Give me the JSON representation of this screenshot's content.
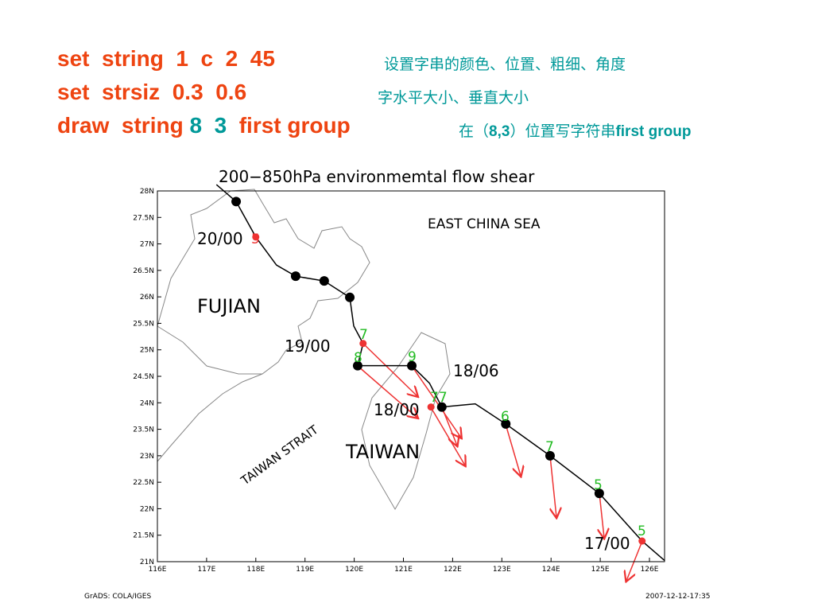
{
  "header": {
    "lines": [
      {
        "command": "set  string  1  c  2  45",
        "note": "设置字串的颜色、位置、粗细、角度"
      },
      {
        "command": "set  strsiz  0.3  0.6",
        "note": "字水平大小、垂直大小"
      },
      {
        "command_parts": [
          "draw  string ",
          "8  3",
          "  first group"
        ],
        "note_parts": [
          "在（",
          "8,3",
          "）位置写字符串",
          "first group"
        ]
      }
    ]
  },
  "map": {
    "title": "200−850hPa environmemtal flow shear",
    "xlim": [
      116,
      126
    ],
    "ylim": [
      21,
      28
    ],
    "xticks": [
      {
        "value": 116,
        "label": "116E"
      },
      {
        "value": 117,
        "label": "117E"
      },
      {
        "value": 118,
        "label": "118E"
      },
      {
        "value": 119,
        "label": "119E"
      },
      {
        "value": 120,
        "label": "120E"
      },
      {
        "value": 121,
        "label": "121E"
      },
      {
        "value": 122,
        "label": "122E"
      },
      {
        "value": 123,
        "label": "123E"
      },
      {
        "value": 124,
        "label": "124E"
      },
      {
        "value": 125,
        "label": "125E"
      },
      {
        "value": 126,
        "label": "126E"
      }
    ],
    "yticks": [
      {
        "value": 21,
        "label": "21N"
      },
      {
        "value": 21.5,
        "label": "21.5N"
      },
      {
        "value": 22,
        "label": "22N"
      },
      {
        "value": 22.5,
        "label": "22.5N"
      },
      {
        "value": 23,
        "label": "23N"
      },
      {
        "value": 23.5,
        "label": "23.5N"
      },
      {
        "value": 24,
        "label": "24N"
      },
      {
        "value": 24.5,
        "label": "24.5N"
      },
      {
        "value": 25,
        "label": "25N"
      },
      {
        "value": 25.5,
        "label": "25.5N"
      },
      {
        "value": 26,
        "label": "26N"
      },
      {
        "value": 26.5,
        "label": "26.5N"
      },
      {
        "value": 27,
        "label": "27N"
      },
      {
        "value": 27.5,
        "label": "27.5N"
      },
      {
        "value": 28,
        "label": "28N"
      }
    ],
    "track": {
      "lon": [
        117.2,
        117.6,
        118.0,
        118.42,
        118.81,
        119.39,
        119.91,
        119.99,
        120.18,
        120.07,
        121.17,
        121.53,
        121.78,
        122.46,
        123.08,
        123.98,
        124.98,
        125.56,
        125.85,
        126.31
      ],
      "lat": [
        28.12,
        27.8,
        27.13,
        26.6,
        26.39,
        26.3,
        25.99,
        25.45,
        25.12,
        24.7,
        24.7,
        24.37,
        23.92,
        23.98,
        23.6,
        23.0,
        22.29,
        21.69,
        21.39,
        21.02
      ]
    },
    "points": [
      {
        "lon": 117.6,
        "lat": 27.8,
        "color": "#000000"
      },
      {
        "lon": 118.81,
        "lat": 26.39,
        "color": "#000000"
      },
      {
        "lon": 119.39,
        "lat": 26.3,
        "color": "#000000"
      },
      {
        "lon": 119.91,
        "lat": 25.99,
        "color": "#000000"
      },
      {
        "lon": 120.07,
        "lat": 24.7,
        "color": "#000000"
      },
      {
        "lon": 121.17,
        "lat": 24.7,
        "color": "#000000"
      },
      {
        "lon": 121.78,
        "lat": 23.92,
        "color": "#000000"
      },
      {
        "lon": 123.08,
        "lat": 23.6,
        "color": "#000000"
      },
      {
        "lon": 123.98,
        "lat": 23.0,
        "color": "#000000"
      },
      {
        "lon": 124.98,
        "lat": 22.29,
        "color": "#000000"
      },
      {
        "lon": 118.0,
        "lat": 27.13,
        "color": "#ee3333"
      },
      {
        "lon": 120.18,
        "lat": 25.12,
        "color": "#ee3333"
      },
      {
        "lon": 121.56,
        "lat": 23.92,
        "color": "#ee3333"
      },
      {
        "lon": 125.85,
        "lat": 21.39,
        "color": "#ee3333"
      }
    ],
    "region_labels": [
      "EAST  CHINA  SEA",
      "FUJIAN",
      "TAIWAN",
      "TAIWAN  STRAIT"
    ],
    "time_labels": [
      "20/00",
      "19/00",
      "18/06",
      "18/00",
      "17/00"
    ],
    "number_labels": [
      "5",
      "7",
      "8",
      "9",
      "77",
      "6",
      "7",
      "5",
      "5"
    ],
    "footer_left": "GrADS: COLA/IGES",
    "footer_right": "2007-12-12-17:35"
  }
}
